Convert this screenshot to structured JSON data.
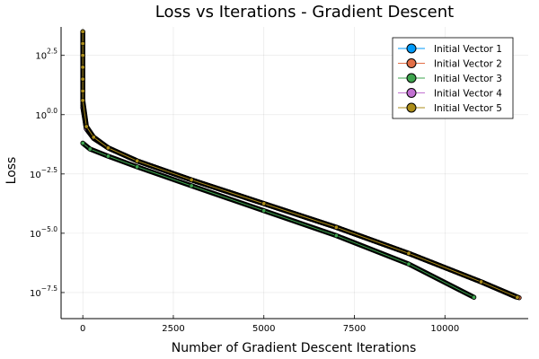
{
  "chart_data": {
    "type": "scatter",
    "title": "Loss vs Iterations - Gradient Descent",
    "xlabel": "Number of Gradient Descent Iterations",
    "ylabel": "Loss",
    "xlim": [
      -600,
      12300
    ],
    "ylim_log10": [
      -8.6,
      3.7
    ],
    "y_scale": "log10",
    "grid": true,
    "legend_position": "top-right",
    "x_ticks": [
      {
        "value": 0,
        "label": "0"
      },
      {
        "value": 2500,
        "label": "2500"
      },
      {
        "value": 5000,
        "label": "5000"
      },
      {
        "value": 7500,
        "label": "7500"
      },
      {
        "value": 10000,
        "label": "10000"
      }
    ],
    "y_ticks": [
      {
        "log10": 2.5,
        "base": "10",
        "exp": "2.5"
      },
      {
        "log10": 0.0,
        "base": "10",
        "exp": "0.0"
      },
      {
        "log10": -2.5,
        "base": "10",
        "exp": "−2.5"
      },
      {
        "log10": -5.0,
        "base": "10",
        "exp": "−5.0"
      },
      {
        "log10": -7.5,
        "base": "10",
        "exp": "−7.5"
      }
    ],
    "series": [
      {
        "name": "Initial Vector 1",
        "color": "#009AFA",
        "points_log10": [
          [
            0,
            0.4
          ],
          [
            100,
            -0.6
          ],
          [
            300,
            -1.0
          ],
          [
            700,
            -1.4
          ],
          [
            1500,
            -1.95
          ],
          [
            3000,
            -2.75
          ],
          [
            5000,
            -3.75
          ],
          [
            7000,
            -4.75
          ],
          [
            9000,
            -5.85
          ],
          [
            11000,
            -7.05
          ],
          [
            12000,
            -7.7
          ]
        ]
      },
      {
        "name": "Initial Vector 2",
        "color": "#E36F47",
        "points_log10": [
          [
            0,
            0.5
          ],
          [
            100,
            -0.55
          ],
          [
            300,
            -0.95
          ],
          [
            700,
            -1.4
          ],
          [
            1500,
            -1.95
          ],
          [
            3000,
            -2.75
          ],
          [
            5000,
            -3.75
          ],
          [
            7000,
            -4.75
          ],
          [
            9000,
            -5.85
          ],
          [
            11000,
            -7.05
          ],
          [
            12050,
            -7.72
          ]
        ]
      },
      {
        "name": "Initial Vector 3",
        "color": "#3EA44E",
        "points_log10": [
          [
            0,
            -1.2
          ],
          [
            200,
            -1.45
          ],
          [
            700,
            -1.75
          ],
          [
            1500,
            -2.2
          ],
          [
            3000,
            -3.0
          ],
          [
            5000,
            -4.05
          ],
          [
            7000,
            -5.1
          ],
          [
            9000,
            -6.3
          ],
          [
            10800,
            -7.7
          ]
        ]
      },
      {
        "name": "Initial Vector 4",
        "color": "#C271D2",
        "points_log10": [
          [
            0,
            0.3
          ],
          [
            100,
            -0.6
          ],
          [
            300,
            -1.0
          ],
          [
            700,
            -1.4
          ],
          [
            1500,
            -1.95
          ],
          [
            3000,
            -2.75
          ],
          [
            5000,
            -3.75
          ],
          [
            7000,
            -4.75
          ],
          [
            9000,
            -5.85
          ],
          [
            11000,
            -7.05
          ],
          [
            11950,
            -7.68
          ]
        ]
      },
      {
        "name": "Initial Vector 5",
        "color": "#AC8D18",
        "points_log10": [
          [
            0,
            3.5
          ],
          [
            0,
            3.0
          ],
          [
            0,
            2.5
          ],
          [
            0,
            2.0
          ],
          [
            0,
            1.5
          ],
          [
            0,
            1.0
          ],
          [
            0,
            0.6
          ],
          [
            100,
            -0.5
          ],
          [
            300,
            -0.95
          ],
          [
            700,
            -1.4
          ],
          [
            1500,
            -1.95
          ],
          [
            3000,
            -2.75
          ],
          [
            5000,
            -3.75
          ],
          [
            7000,
            -4.75
          ],
          [
            9000,
            -5.85
          ],
          [
            11000,
            -7.05
          ],
          [
            12000,
            -7.7
          ]
        ]
      }
    ]
  }
}
